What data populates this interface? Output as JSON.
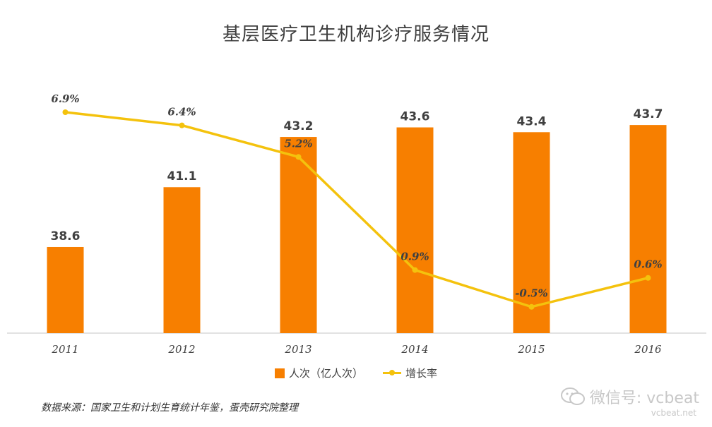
{
  "chart_data": {
    "type": "bar+line",
    "title": "基层医疗卫生机构诊疗服务情况",
    "categories": [
      "2011",
      "2012",
      "2013",
      "2014",
      "2015",
      "2016"
    ],
    "series": [
      {
        "name": "人次（亿人次）",
        "type": "bar",
        "values": [
          38.6,
          41.1,
          43.2,
          43.6,
          43.4,
          43.7
        ],
        "labels": [
          "38.6",
          "41.1",
          "43.2",
          "43.6",
          "43.4",
          "43.7"
        ],
        "color": "#f77f00"
      },
      {
        "name": "增长率",
        "type": "line",
        "values": [
          6.9,
          6.4,
          5.2,
          0.9,
          -0.5,
          0.6
        ],
        "labels": [
          "6.9%",
          "6.4%",
          "5.2%",
          "0.9%",
          "-0.5%",
          "0.6%"
        ],
        "color": "#f4c20d"
      }
    ],
    "bar_axis_range": [
      35,
      44.5
    ],
    "line_axis_range": [
      -1.5,
      8
    ],
    "grid": false,
    "legend_position": "bottom"
  },
  "source_note": "数据来源：国家卫生和计划生育统计年鉴，蛋壳研究院整理",
  "watermark": {
    "text": "微信号: vcbeat",
    "sub": "vcbeat.net",
    "icon": "wechat-icon"
  }
}
